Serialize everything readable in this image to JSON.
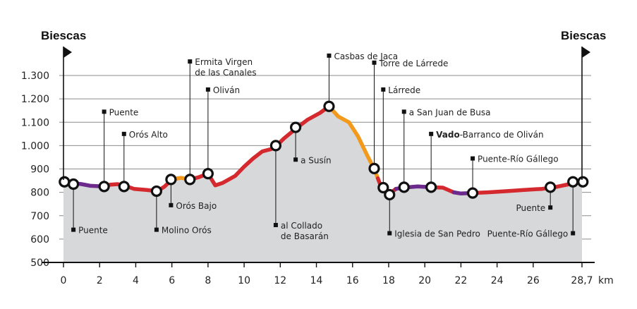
{
  "chart_data": {
    "type": "area",
    "title": "",
    "xlabel": "km",
    "ylabel": "",
    "xlim": [
      0,
      28.7
    ],
    "ylim": [
      500,
      1300
    ],
    "x_ticks": [
      {
        "value": 0,
        "label": "0"
      },
      {
        "value": 2,
        "label": "2"
      },
      {
        "value": 4,
        "label": "4"
      },
      {
        "value": 6,
        "label": "6"
      },
      {
        "value": 8,
        "label": "8"
      },
      {
        "value": 10,
        "label": "10"
      },
      {
        "value": 12,
        "label": "12"
      },
      {
        "value": 14,
        "label": "14"
      },
      {
        "value": 16,
        "label": "16"
      },
      {
        "value": 18,
        "label": "18"
      },
      {
        "value": 20,
        "label": "20"
      },
      {
        "value": 22,
        "label": "22"
      },
      {
        "value": 24,
        "label": "24"
      },
      {
        "value": 26,
        "label": "26"
      },
      {
        "value": 28.7,
        "label": "28,7"
      }
    ],
    "y_ticks": [
      {
        "value": 500,
        "label": "500"
      },
      {
        "value": 600,
        "label": "600"
      },
      {
        "value": 700,
        "label": "700"
      },
      {
        "value": 800,
        "label": "800"
      },
      {
        "value": 900,
        "label": "900"
      },
      {
        "value": 1000,
        "label": "1.000"
      },
      {
        "value": 1100,
        "label": "1.100"
      },
      {
        "value": 1200,
        "label": "1.200"
      },
      {
        "value": 1300,
        "label": "1.300"
      }
    ],
    "start_label": "Biescas",
    "end_label": "Biescas",
    "profile": [
      [
        0,
        845
      ],
      [
        1,
        835
      ],
      [
        1.5,
        828
      ],
      [
        2.2,
        825
      ],
      [
        2.6,
        833
      ],
      [
        3.0,
        835
      ],
      [
        3.4,
        828
      ],
      [
        3.9,
        815
      ],
      [
        4.6,
        810
      ],
      [
        5.2,
        805
      ],
      [
        5.6,
        825
      ],
      [
        6.0,
        855
      ],
      [
        6.5,
        862
      ],
      [
        7.0,
        855
      ],
      [
        7.5,
        865
      ],
      [
        8.0,
        880
      ],
      [
        8.4,
        830
      ],
      [
        8.8,
        840
      ],
      [
        9.5,
        870
      ],
      [
        10.0,
        910
      ],
      [
        10.5,
        945
      ],
      [
        11.0,
        975
      ],
      [
        11.5,
        985
      ],
      [
        11.8,
        1000
      ],
      [
        12.2,
        1030
      ],
      [
        12.9,
        1075
      ],
      [
        13.5,
        1110
      ],
      [
        14.2,
        1140
      ],
      [
        14.7,
        1168
      ],
      [
        15.2,
        1125
      ],
      [
        15.8,
        1100
      ],
      [
        16.3,
        1040
      ],
      [
        16.8,
        960
      ],
      [
        17.2,
        900
      ],
      [
        17.6,
        820
      ],
      [
        18.0,
        790
      ],
      [
        18.4,
        815
      ],
      [
        18.8,
        820
      ],
      [
        19.6,
        825
      ],
      [
        20.3,
        822
      ],
      [
        21.0,
        820
      ],
      [
        21.6,
        800
      ],
      [
        22.0,
        795
      ],
      [
        22.6,
        797
      ],
      [
        23.5,
        800
      ],
      [
        24.5,
        805
      ],
      [
        25.5,
        810
      ],
      [
        26.5,
        815
      ],
      [
        27.2,
        822
      ],
      [
        28.0,
        835
      ],
      [
        28.7,
        845
      ]
    ],
    "segments": [
      {
        "from": 0,
        "to": 0.6,
        "color": "#d42a2f"
      },
      {
        "from": 0.6,
        "to": 2.3,
        "color": "#6b2a8c"
      },
      {
        "from": 2.3,
        "to": 6.3,
        "color": "#d42a2f"
      },
      {
        "from": 6.3,
        "to": 7.3,
        "color": "#f39a1d"
      },
      {
        "from": 7.3,
        "to": 14.7,
        "color": "#d42a2f"
      },
      {
        "from": 14.7,
        "to": 17.4,
        "color": "#f39a1d"
      },
      {
        "from": 17.4,
        "to": 18.4,
        "color": "#d42a2f"
      },
      {
        "from": 18.4,
        "to": 20.3,
        "color": "#6b2a8c"
      },
      {
        "from": 20.3,
        "to": 21.6,
        "color": "#d42a2f"
      },
      {
        "from": 21.6,
        "to": 22.6,
        "color": "#6b2a8c"
      },
      {
        "from": 22.6,
        "to": 28.7,
        "color": "#d42a2f"
      }
    ],
    "markers": [
      {
        "x": 0.05,
        "y": 845
      },
      {
        "x": 0.55,
        "y": 835
      },
      {
        "x": 2.25,
        "y": 825
      },
      {
        "x": 3.35,
        "y": 825
      },
      {
        "x": 5.15,
        "y": 805
      },
      {
        "x": 5.95,
        "y": 855
      },
      {
        "x": 7.0,
        "y": 855
      },
      {
        "x": 8.0,
        "y": 880
      },
      {
        "x": 11.75,
        "y": 1000
      },
      {
        "x": 12.85,
        "y": 1078
      },
      {
        "x": 14.7,
        "y": 1168
      },
      {
        "x": 17.2,
        "y": 902
      },
      {
        "x": 17.7,
        "y": 820
      },
      {
        "x": 18.05,
        "y": 790
      },
      {
        "x": 18.85,
        "y": 822
      },
      {
        "x": 20.35,
        "y": 822
      },
      {
        "x": 22.65,
        "y": 797
      },
      {
        "x": 26.95,
        "y": 822
      },
      {
        "x": 28.2,
        "y": 845
      },
      {
        "x": 28.75,
        "y": 845
      }
    ],
    "annotations": [
      {
        "lines": [
          "Puente"
        ],
        "x": 0.55,
        "label_y": 640,
        "anchor_y": 835
      },
      {
        "lines": [
          "Puente"
        ],
        "x": 2.25,
        "label_y": 1145,
        "anchor_y": 825
      },
      {
        "lines": [
          "Orós Alto"
        ],
        "x": 3.35,
        "label_y": 1050,
        "anchor_y": 825
      },
      {
        "lines": [
          "Molino Orós"
        ],
        "x": 5.15,
        "label_y": 640,
        "anchor_y": 805
      },
      {
        "lines": [
          "Orós Bajo"
        ],
        "x": 5.95,
        "label_y": 745,
        "anchor_y": 855
      },
      {
        "lines": [
          "Ermita Virgen",
          "de las Canales"
        ],
        "x": 7.0,
        "label_y": 1360,
        "anchor_y": 855
      },
      {
        "lines": [
          "Oliván"
        ],
        "x": 8.0,
        "label_y": 1240,
        "anchor_y": 880
      },
      {
        "lines": [
          "al Collado",
          "de Basarán"
        ],
        "x": 11.75,
        "label_y": 660,
        "anchor_y": 1000
      },
      {
        "lines": [
          "a Susín"
        ],
        "x": 12.85,
        "label_y": 940,
        "anchor_y": 1078
      },
      {
        "lines": [
          "Casbas de Jaca"
        ],
        "x": 14.7,
        "label_y": 1385,
        "anchor_y": 1168
      },
      {
        "lines": [
          "Torre de Lárrede"
        ],
        "x": 17.2,
        "label_y": 1355,
        "anchor_y": 902
      },
      {
        "lines": [
          "Lárrede"
        ],
        "x": 17.7,
        "label_y": 1240,
        "anchor_y": 820
      },
      {
        "lines": [
          "Iglesia de San Pedro"
        ],
        "x": 18.05,
        "label_y": 625,
        "anchor_y": 790
      },
      {
        "lines": [
          "a San Juan de Busa"
        ],
        "x": 18.85,
        "label_y": 1145,
        "anchor_y": 822
      },
      {
        "lines": [
          "Vado-Barranco de Oliván"
        ],
        "bold_prefix": "Vado",
        "x": 20.35,
        "label_y": 1050,
        "anchor_y": 822
      },
      {
        "lines": [
          "Puente-Río Gállego"
        ],
        "x": 22.65,
        "label_y": 945,
        "anchor_y": 797
      },
      {
        "lines": [
          "Puente"
        ],
        "x": 26.95,
        "label_y": 735,
        "anchor_y": 822,
        "side": "left"
      },
      {
        "lines": [
          "Puente-Río Gállego"
        ],
        "x": 28.2,
        "label_y": 625,
        "anchor_y": 845,
        "side": "left"
      }
    ]
  }
}
